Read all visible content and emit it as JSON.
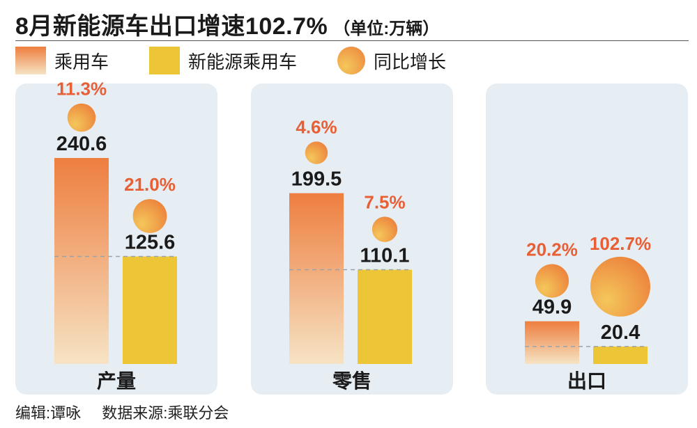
{
  "title": "8月新能源车出口增速102.7%",
  "unit_label": "（单位:万辆）",
  "legend": {
    "passenger": "乘用车",
    "nev_passenger": "新能源乘用车",
    "yoy": "同比增长"
  },
  "footer": {
    "editor": "编辑:谭咏",
    "source": "数据来源:乘联分会"
  },
  "colors": {
    "passenger_top": "#ee7e3f",
    "passenger_bottom": "#f6e3c4",
    "nev": "#ecc637",
    "panel": "#e6eef3",
    "growth_text": "#e85f36"
  },
  "chart_data": {
    "type": "bar",
    "categories": [
      "产量",
      "零售",
      "出口"
    ],
    "series": [
      {
        "name": "乘用车",
        "values": [
          240.6,
          199.5,
          49.9
        ],
        "labels": [
          "240.6",
          "199.5",
          "49.9"
        ],
        "growth": [
          "11.3%",
          "4.6%",
          "20.2%"
        ],
        "growth_values": [
          11.3,
          4.6,
          20.2
        ]
      },
      {
        "name": "新能源乘用车",
        "values": [
          125.6,
          110.1,
          20.4
        ],
        "labels": [
          "125.6",
          "110.1",
          "20.4"
        ],
        "growth": [
          "21.0%",
          "7.5%",
          "102.7%"
        ],
        "growth_values": [
          21.0,
          7.5,
          102.7
        ]
      }
    ],
    "ylabel": "万辆",
    "grid": false,
    "legend_position": "top-left"
  }
}
